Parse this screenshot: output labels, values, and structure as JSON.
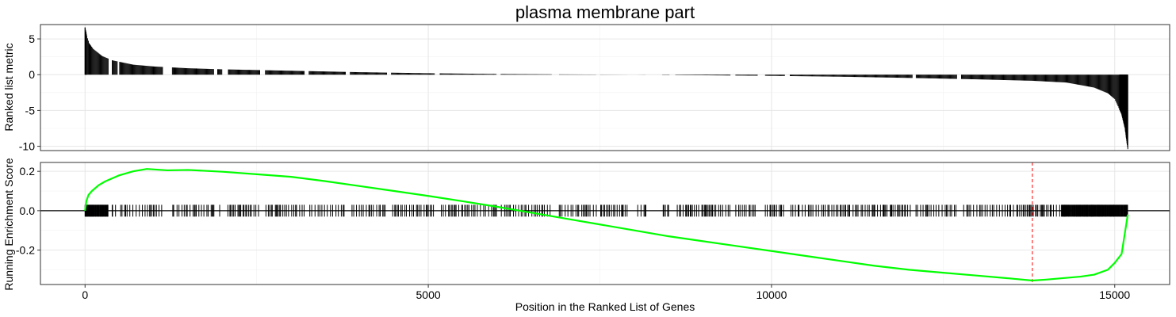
{
  "chart_data": [
    {
      "type": "bar",
      "panel": "top",
      "title": "plasma membrane part",
      "xlabel": "",
      "ylabel": "Ranked list metric",
      "xlim": [
        -650,
        15800
      ],
      "ylim": [
        -10.6,
        7.0
      ],
      "y_ticks": [
        5,
        0,
        -5,
        -10
      ],
      "y_tick_labels": [
        "5",
        "0",
        "-5",
        "-10"
      ],
      "grid": true,
      "metric_profile": [
        [
          0,
          6.6
        ],
        [
          25,
          5.4
        ],
        [
          60,
          4.4
        ],
        [
          120,
          3.6
        ],
        [
          250,
          2.6
        ],
        [
          400,
          2.0
        ],
        [
          700,
          1.4
        ],
        [
          1000,
          1.15
        ],
        [
          1500,
          0.9
        ],
        [
          2000,
          0.75
        ],
        [
          3000,
          0.55
        ],
        [
          4000,
          0.35
        ],
        [
          5000,
          0.2
        ],
        [
          6000,
          0.1
        ],
        [
          7000,
          0.04
        ],
        [
          8000,
          0.0
        ],
        [
          9000,
          -0.08
        ],
        [
          10000,
          -0.16
        ],
        [
          11000,
          -0.28
        ],
        [
          12000,
          -0.45
        ],
        [
          13000,
          -0.65
        ],
        [
          13800,
          -0.85
        ],
        [
          14300,
          -1.1
        ],
        [
          14700,
          -1.8
        ],
        [
          14900,
          -2.6
        ],
        [
          15000,
          -3.4
        ],
        [
          15100,
          -5.5
        ],
        [
          15150,
          -7.5
        ],
        [
          15190,
          -10.4
        ]
      ],
      "gaps": [
        [
          340,
          390
        ],
        [
          470,
          500
        ],
        [
          1130,
          1260
        ],
        [
          1880,
          1920
        ],
        [
          2000,
          2080
        ],
        [
          2550,
          2620
        ],
        [
          3200,
          3260
        ],
        [
          3800,
          3860
        ],
        [
          4400,
          4460
        ],
        [
          5100,
          5160
        ],
        [
          6000,
          6050
        ],
        [
          6800,
          6900
        ],
        [
          7450,
          7500
        ],
        [
          7900,
          8050
        ],
        [
          8170,
          8400
        ],
        [
          8520,
          8600
        ],
        [
          9400,
          9470
        ],
        [
          9800,
          9900
        ],
        [
          10200,
          10260
        ],
        [
          12050,
          12100
        ],
        [
          12700,
          12760
        ]
      ]
    },
    {
      "type": "line",
      "panel": "bottom",
      "xlabel": "Position in the Ranked List of Genes",
      "ylabel": "Running Enrichment Score",
      "xlim": [
        -650,
        15800
      ],
      "ylim": [
        -0.375,
        0.245
      ],
      "x_ticks": [
        0,
        5000,
        10000,
        15000
      ],
      "x_tick_labels": [
        "0",
        "5000",
        "10000",
        "15000"
      ],
      "y_ticks": [
        0.2,
        0.0,
        -0.2
      ],
      "y_tick_labels": [
        "0.2",
        "0.0",
        "-0.2"
      ],
      "grid": true,
      "series": [
        {
          "color": "#00ff00",
          "x": [
            0,
            20,
            50,
            100,
            200,
            300,
            400,
            500,
            700,
            900,
            1200,
            1500,
            2000,
            2500,
            3000,
            3500,
            4000,
            4500,
            5000,
            5500,
            6000,
            6500,
            7000,
            7500,
            8000,
            8500,
            9000,
            9500,
            10000,
            10500,
            11000,
            11500,
            12000,
            12500,
            13000,
            13500,
            13800,
            14000,
            14500,
            14700,
            14900,
            15000,
            15100,
            15190
          ],
          "y": [
            0.0,
            0.05,
            0.08,
            0.1,
            0.13,
            0.15,
            0.165,
            0.18,
            0.2,
            0.212,
            0.205,
            0.207,
            0.198,
            0.185,
            0.172,
            0.15,
            0.125,
            0.1,
            0.075,
            0.048,
            0.02,
            -0.01,
            -0.04,
            -0.07,
            -0.1,
            -0.13,
            -0.155,
            -0.18,
            -0.205,
            -0.23,
            -0.255,
            -0.28,
            -0.3,
            -0.315,
            -0.33,
            -0.345,
            -0.355,
            -0.35,
            -0.335,
            -0.325,
            -0.3,
            -0.265,
            -0.22,
            -0.02
          ]
        }
      ],
      "hit_positions_note_gaps": [
        [
          340,
          390
        ],
        [
          470,
          500
        ],
        [
          1130,
          1260
        ],
        [
          1880,
          1920
        ],
        [
          2000,
          2080
        ],
        [
          2550,
          2620
        ],
        [
          3200,
          3260
        ],
        [
          3800,
          3860
        ],
        [
          4400,
          4460
        ],
        [
          5100,
          5160
        ],
        [
          6000,
          6050
        ],
        [
          6800,
          6900
        ],
        [
          7450,
          7500
        ],
        [
          7900,
          8050
        ],
        [
          8170,
          8400
        ],
        [
          8520,
          8600
        ],
        [
          9400,
          9470
        ],
        [
          9800,
          9900
        ],
        [
          10200,
          10260
        ],
        [
          12050,
          12100
        ],
        [
          12700,
          12760
        ]
      ],
      "hit_range": [
        0,
        15190
      ],
      "hit_band_y": [
        -0.03,
        0.03
      ],
      "vline": {
        "x": 13800,
        "color": "#ff0000",
        "style": "dashed"
      },
      "hline": {
        "y": 0.0,
        "color": "#000000"
      }
    }
  ]
}
